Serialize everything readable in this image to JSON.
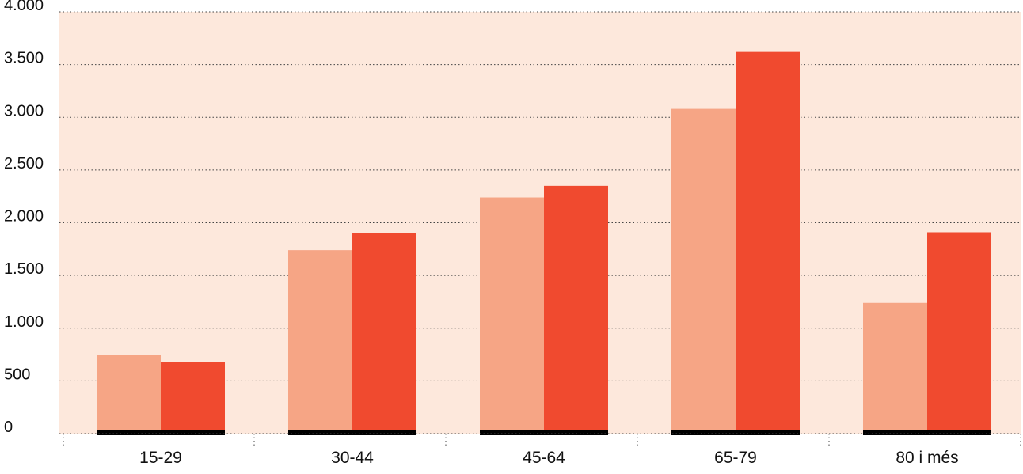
{
  "chart_data": {
    "type": "bar",
    "categories": [
      "15-29",
      "30-44",
      "45-64",
      "65-79",
      "80 i més"
    ],
    "series": [
      {
        "color": "#f6a585",
        "values": [
          750,
          1740,
          2240,
          3080,
          1240
        ]
      },
      {
        "color": "#f04a2f",
        "values": [
          680,
          1900,
          2350,
          3620,
          1910
        ]
      }
    ],
    "ylim": [
      0,
      4000
    ],
    "yticks": [
      {
        "value": 0,
        "label": "0"
      },
      {
        "value": 500,
        "label": "500"
      },
      {
        "value": 1000,
        "label": "1.000"
      },
      {
        "value": 1500,
        "label": "1.500"
      },
      {
        "value": 2000,
        "label": "2.000"
      },
      {
        "value": 2500,
        "label": "2.500"
      },
      {
        "value": 3000,
        "label": "3.000"
      },
      {
        "value": 3500,
        "label": "3.500"
      },
      {
        "value": 4000,
        "label": "4.000"
      }
    ],
    "grid": true,
    "title": "",
    "xlabel": "",
    "ylabel": ""
  },
  "colors": {
    "plot_background": "#fde8dc",
    "grid": "#444444",
    "baseline_marker": "#000000"
  }
}
